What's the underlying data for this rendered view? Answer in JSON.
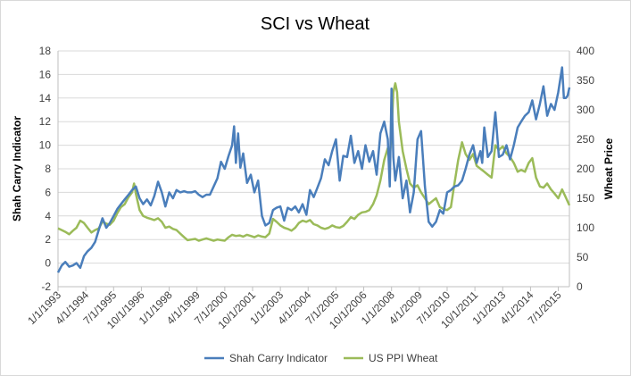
{
  "chart_data": {
    "type": "line",
    "title": "SCI vs Wheat",
    "ylabel": "Shah Carry Indicator",
    "y2label": "Wheat Price",
    "ylim": [
      -2,
      18
    ],
    "y2lim": [
      0,
      400
    ],
    "ytick_labels": [
      "-2",
      "0",
      "2",
      "4",
      "6",
      "8",
      "10",
      "12",
      "14",
      "16",
      "18"
    ],
    "y2tick_labels": [
      "0",
      "50",
      "100",
      "150",
      "200",
      "250",
      "300",
      "350",
      "400"
    ],
    "xtick_labels": [
      "1/1/1993",
      "4/1/1994",
      "7/1/1995",
      "10/1/1996",
      "1/1/1998",
      "4/1/1999",
      "7/1/2000",
      "10/1/2001",
      "1/1/2003",
      "4/1/2004",
      "7/1/2005",
      "10/1/2006",
      "1/1/2008",
      "4/1/2009",
      "7/1/2010",
      "10/1/2011",
      "1/1/2013",
      "4/1/2014",
      "7/1/2015"
    ],
    "xtick_values": [
      1993.0,
      1994.25,
      1995.5,
      1996.75,
      1998.0,
      1999.25,
      2000.5,
      2001.75,
      2003.0,
      2004.25,
      2005.5,
      2006.75,
      2008.0,
      2009.25,
      2010.5,
      2011.75,
      2013.0,
      2014.25,
      2015.5
    ],
    "xlim": [
      1993.0,
      2016.0
    ],
    "grid": true,
    "legend_position": "bottom",
    "series": [
      {
        "name": "Shah Carry Indicator",
        "axis": "left",
        "color": "#4a7ebb",
        "points": [
          [
            1993.0,
            -0.8
          ],
          [
            1993.17,
            -0.2
          ],
          [
            1993.33,
            0.1
          ],
          [
            1993.5,
            -0.3
          ],
          [
            1993.67,
            -0.2
          ],
          [
            1993.83,
            0.0
          ],
          [
            1994.0,
            -0.4
          ],
          [
            1994.17,
            0.6
          ],
          [
            1994.33,
            1.0
          ],
          [
            1994.5,
            1.3
          ],
          [
            1994.67,
            1.8
          ],
          [
            1994.83,
            2.8
          ],
          [
            1995.0,
            3.8
          ],
          [
            1995.17,
            3.0
          ],
          [
            1995.33,
            3.4
          ],
          [
            1995.5,
            4.0
          ],
          [
            1995.67,
            4.6
          ],
          [
            1995.83,
            5.0
          ],
          [
            1996.0,
            5.4
          ],
          [
            1996.17,
            5.8
          ],
          [
            1996.33,
            6.2
          ],
          [
            1996.5,
            6.5
          ],
          [
            1996.67,
            5.5
          ],
          [
            1996.83,
            5.0
          ],
          [
            1997.0,
            5.4
          ],
          [
            1997.17,
            4.9
          ],
          [
            1997.33,
            5.7
          ],
          [
            1997.5,
            6.9
          ],
          [
            1997.67,
            6.0
          ],
          [
            1997.83,
            4.8
          ],
          [
            1998.0,
            6.0
          ],
          [
            1998.17,
            5.5
          ],
          [
            1998.33,
            6.2
          ],
          [
            1998.5,
            6.0
          ],
          [
            1998.67,
            6.1
          ],
          [
            1998.83,
            6.0
          ],
          [
            1999.0,
            6.0
          ],
          [
            1999.17,
            6.1
          ],
          [
            1999.33,
            5.8
          ],
          [
            1999.5,
            5.6
          ],
          [
            1999.67,
            5.8
          ],
          [
            1999.83,
            5.8
          ],
          [
            2000.0,
            6.5
          ],
          [
            2000.17,
            7.2
          ],
          [
            2000.33,
            8.6
          ],
          [
            2000.5,
            8.0
          ],
          [
            2000.67,
            9.1
          ],
          [
            2000.83,
            10.0
          ],
          [
            2000.92,
            11.6
          ],
          [
            2001.0,
            8.5
          ],
          [
            2001.1,
            11.0
          ],
          [
            2001.2,
            8.1
          ],
          [
            2001.33,
            9.3
          ],
          [
            2001.5,
            6.8
          ],
          [
            2001.67,
            7.5
          ],
          [
            2001.83,
            6.0
          ],
          [
            2002.0,
            7.0
          ],
          [
            2002.17,
            4.0
          ],
          [
            2002.33,
            3.2
          ],
          [
            2002.5,
            3.4
          ],
          [
            2002.67,
            4.5
          ],
          [
            2002.83,
            4.7
          ],
          [
            2003.0,
            4.8
          ],
          [
            2003.17,
            3.6
          ],
          [
            2003.33,
            4.7
          ],
          [
            2003.5,
            4.5
          ],
          [
            2003.67,
            4.8
          ],
          [
            2003.83,
            4.3
          ],
          [
            2004.0,
            5.0
          ],
          [
            2004.17,
            4.1
          ],
          [
            2004.33,
            6.2
          ],
          [
            2004.5,
            5.6
          ],
          [
            2004.67,
            6.4
          ],
          [
            2004.83,
            7.2
          ],
          [
            2005.0,
            8.8
          ],
          [
            2005.17,
            8.3
          ],
          [
            2005.33,
            9.5
          ],
          [
            2005.5,
            10.5
          ],
          [
            2005.67,
            7.0
          ],
          [
            2005.83,
            9.1
          ],
          [
            2006.0,
            9.0
          ],
          [
            2006.17,
            10.8
          ],
          [
            2006.33,
            8.5
          ],
          [
            2006.5,
            9.5
          ],
          [
            2006.67,
            8.0
          ],
          [
            2006.83,
            10.0
          ],
          [
            2007.0,
            8.6
          ],
          [
            2007.17,
            9.5
          ],
          [
            2007.33,
            7.5
          ],
          [
            2007.5,
            11.0
          ],
          [
            2007.67,
            12.0
          ],
          [
            2007.83,
            10.5
          ],
          [
            2007.92,
            6.5
          ],
          [
            2008.0,
            14.8
          ],
          [
            2008.08,
            9.0
          ],
          [
            2008.17,
            7.0
          ],
          [
            2008.33,
            9.0
          ],
          [
            2008.5,
            5.5
          ],
          [
            2008.67,
            7.0
          ],
          [
            2008.83,
            4.3
          ],
          [
            2009.0,
            6.0
          ],
          [
            2009.17,
            10.5
          ],
          [
            2009.33,
            11.2
          ],
          [
            2009.5,
            6.5
          ],
          [
            2009.67,
            3.5
          ],
          [
            2009.83,
            3.1
          ],
          [
            2010.0,
            3.5
          ],
          [
            2010.17,
            4.5
          ],
          [
            2010.33,
            4.2
          ],
          [
            2010.5,
            6.0
          ],
          [
            2010.67,
            6.2
          ],
          [
            2010.83,
            6.5
          ],
          [
            2011.0,
            6.6
          ],
          [
            2011.17,
            7.0
          ],
          [
            2011.33,
            8.0
          ],
          [
            2011.5,
            9.2
          ],
          [
            2011.67,
            10.0
          ],
          [
            2011.83,
            8.5
          ],
          [
            2012.0,
            9.5
          ],
          [
            2012.08,
            8.5
          ],
          [
            2012.17,
            11.5
          ],
          [
            2012.33,
            9.0
          ],
          [
            2012.5,
            9.5
          ],
          [
            2012.67,
            12.8
          ],
          [
            2012.83,
            9.0
          ],
          [
            2013.0,
            9.2
          ],
          [
            2013.17,
            10.0
          ],
          [
            2013.33,
            8.8
          ],
          [
            2013.5,
            10.0
          ],
          [
            2013.67,
            11.5
          ],
          [
            2013.83,
            12.0
          ],
          [
            2014.0,
            12.5
          ],
          [
            2014.17,
            12.8
          ],
          [
            2014.33,
            13.8
          ],
          [
            2014.5,
            12.2
          ],
          [
            2014.67,
            13.5
          ],
          [
            2014.83,
            15.0
          ],
          [
            2015.0,
            12.5
          ],
          [
            2015.17,
            13.5
          ],
          [
            2015.33,
            13.0
          ],
          [
            2015.5,
            14.5
          ],
          [
            2015.67,
            16.6
          ],
          [
            2015.75,
            14.0
          ],
          [
            2015.83,
            14.0
          ],
          [
            2015.92,
            14.2
          ],
          [
            2016.0,
            14.9
          ]
        ]
      },
      {
        "name": "US PPI Wheat",
        "axis": "right",
        "color": "#9bbb59",
        "points": [
          [
            1993.0,
            99
          ],
          [
            1993.17,
            96
          ],
          [
            1993.33,
            93
          ],
          [
            1993.5,
            89
          ],
          [
            1993.67,
            95
          ],
          [
            1993.83,
            100
          ],
          [
            1994.0,
            112
          ],
          [
            1994.17,
            108
          ],
          [
            1994.33,
            100
          ],
          [
            1994.5,
            92
          ],
          [
            1994.67,
            96
          ],
          [
            1994.83,
            99
          ],
          [
            1995.0,
            110
          ],
          [
            1995.17,
            107
          ],
          [
            1995.33,
            105
          ],
          [
            1995.5,
            112
          ],
          [
            1995.67,
            125
          ],
          [
            1995.83,
            135
          ],
          [
            1996.0,
            140
          ],
          [
            1996.17,
            152
          ],
          [
            1996.33,
            160
          ],
          [
            1996.42,
            175
          ],
          [
            1996.5,
            158
          ],
          [
            1996.67,
            130
          ],
          [
            1996.83,
            120
          ],
          [
            1997.0,
            117
          ],
          [
            1997.17,
            115
          ],
          [
            1997.33,
            113
          ],
          [
            1997.5,
            116
          ],
          [
            1997.67,
            110
          ],
          [
            1997.83,
            100
          ],
          [
            1998.0,
            102
          ],
          [
            1998.17,
            98
          ],
          [
            1998.33,
            96
          ],
          [
            1998.5,
            90
          ],
          [
            1998.67,
            84
          ],
          [
            1998.83,
            79
          ],
          [
            1999.0,
            80
          ],
          [
            1999.17,
            81
          ],
          [
            1999.33,
            78
          ],
          [
            1999.5,
            80
          ],
          [
            1999.67,
            82
          ],
          [
            1999.83,
            80
          ],
          [
            2000.0,
            78
          ],
          [
            2000.17,
            80
          ],
          [
            2000.33,
            79
          ],
          [
            2000.5,
            78
          ],
          [
            2000.67,
            84
          ],
          [
            2000.83,
            88
          ],
          [
            2001.0,
            86
          ],
          [
            2001.17,
            87
          ],
          [
            2001.33,
            85
          ],
          [
            2001.5,
            88
          ],
          [
            2001.67,
            86
          ],
          [
            2001.83,
            84
          ],
          [
            2002.0,
            87
          ],
          [
            2002.17,
            85
          ],
          [
            2002.33,
            84
          ],
          [
            2002.5,
            90
          ],
          [
            2002.67,
            115
          ],
          [
            2002.83,
            110
          ],
          [
            2003.0,
            104
          ],
          [
            2003.17,
            100
          ],
          [
            2003.33,
            98
          ],
          [
            2003.5,
            95
          ],
          [
            2003.67,
            100
          ],
          [
            2003.83,
            108
          ],
          [
            2004.0,
            112
          ],
          [
            2004.17,
            110
          ],
          [
            2004.33,
            113
          ],
          [
            2004.5,
            106
          ],
          [
            2004.67,
            104
          ],
          [
            2004.83,
            100
          ],
          [
            2005.0,
            98
          ],
          [
            2005.17,
            100
          ],
          [
            2005.33,
            104
          ],
          [
            2005.5,
            101
          ],
          [
            2005.67,
            100
          ],
          [
            2005.83,
            103
          ],
          [
            2006.0,
            110
          ],
          [
            2006.17,
            118
          ],
          [
            2006.33,
            115
          ],
          [
            2006.5,
            122
          ],
          [
            2006.67,
            126
          ],
          [
            2006.83,
            127
          ],
          [
            2007.0,
            130
          ],
          [
            2007.17,
            140
          ],
          [
            2007.33,
            155
          ],
          [
            2007.5,
            180
          ],
          [
            2007.67,
            215
          ],
          [
            2007.83,
            235
          ],
          [
            2007.92,
            218
          ],
          [
            2008.0,
            260
          ],
          [
            2008.08,
            330
          ],
          [
            2008.17,
            345
          ],
          [
            2008.25,
            330
          ],
          [
            2008.33,
            280
          ],
          [
            2008.5,
            230
          ],
          [
            2008.67,
            200
          ],
          [
            2008.83,
            175
          ],
          [
            2009.0,
            168
          ],
          [
            2009.17,
            172
          ],
          [
            2009.33,
            160
          ],
          [
            2009.5,
            150
          ],
          [
            2009.67,
            140
          ],
          [
            2009.83,
            145
          ],
          [
            2010.0,
            150
          ],
          [
            2010.17,
            135
          ],
          [
            2010.33,
            132
          ],
          [
            2010.5,
            130
          ],
          [
            2010.67,
            135
          ],
          [
            2010.83,
            175
          ],
          [
            2011.0,
            215
          ],
          [
            2011.17,
            245
          ],
          [
            2011.33,
            225
          ],
          [
            2011.5,
            215
          ],
          [
            2011.67,
            225
          ],
          [
            2011.83,
            205
          ],
          [
            2012.0,
            200
          ],
          [
            2012.17,
            195
          ],
          [
            2012.33,
            190
          ],
          [
            2012.5,
            185
          ],
          [
            2012.67,
            240
          ],
          [
            2012.83,
            232
          ],
          [
            2013.0,
            238
          ],
          [
            2013.17,
            226
          ],
          [
            2013.33,
            220
          ],
          [
            2013.5,
            210
          ],
          [
            2013.67,
            195
          ],
          [
            2013.83,
            198
          ],
          [
            2014.0,
            195
          ],
          [
            2014.17,
            210
          ],
          [
            2014.33,
            218
          ],
          [
            2014.5,
            185
          ],
          [
            2014.67,
            170
          ],
          [
            2014.83,
            168
          ],
          [
            2015.0,
            175
          ],
          [
            2015.17,
            165
          ],
          [
            2015.33,
            158
          ],
          [
            2015.5,
            150
          ],
          [
            2015.67,
            165
          ],
          [
            2015.83,
            152
          ],
          [
            2016.0,
            138
          ]
        ]
      }
    ]
  }
}
